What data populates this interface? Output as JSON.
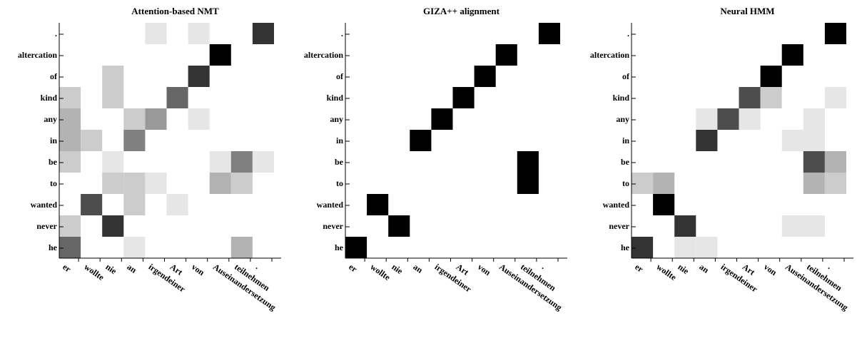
{
  "chart_data": [
    {
      "type": "heatmap",
      "title": "Attention-based NMT",
      "x_tokens": [
        "er",
        "wollte",
        "nie",
        "an",
        "irgendeiner",
        "Art",
        "von",
        "Auseinandersetzung",
        "teilnehmen",
        "."
      ],
      "y_tokens": [
        ".",
        "altercation",
        "of",
        "kind",
        "any",
        "in",
        "be",
        "to",
        "wanted",
        "never",
        "he"
      ],
      "values": [
        [
          0,
          0,
          0,
          0,
          0.1,
          0,
          0.1,
          0,
          0,
          0.8
        ],
        [
          0,
          0,
          0,
          0,
          0,
          0,
          0,
          1.0,
          0,
          0
        ],
        [
          0,
          0,
          0.2,
          0,
          0,
          0,
          0.8,
          0,
          0,
          0
        ],
        [
          0.2,
          0,
          0.2,
          0,
          0,
          0.6,
          0,
          0,
          0,
          0
        ],
        [
          0.3,
          0,
          0,
          0.2,
          0.4,
          0,
          0.1,
          0,
          0,
          0
        ],
        [
          0.3,
          0.2,
          0,
          0.5,
          0,
          0,
          0,
          0,
          0,
          0
        ],
        [
          0.2,
          0,
          0.1,
          0,
          0,
          0,
          0,
          0.1,
          0.5,
          0.1
        ],
        [
          0,
          0,
          0.2,
          0.2,
          0.1,
          0,
          0,
          0.3,
          0.2,
          0
        ],
        [
          0,
          0.7,
          0,
          0.2,
          0,
          0.1,
          0,
          0,
          0,
          0
        ],
        [
          0.2,
          0,
          0.8,
          0,
          0,
          0,
          0,
          0,
          0,
          0
        ],
        [
          0.6,
          0,
          0,
          0.1,
          0,
          0,
          0,
          0,
          0.3,
          0
        ]
      ]
    },
    {
      "type": "heatmap",
      "title": "GIZA++ alignment",
      "x_tokens": [
        "er",
        "wollte",
        "nie",
        "an",
        "irgendeiner",
        "Art",
        "von",
        "Auseinandersetzung",
        "teilnehmen",
        "."
      ],
      "y_tokens": [
        ".",
        "altercation",
        "of",
        "kind",
        "any",
        "in",
        "be",
        "to",
        "wanted",
        "never",
        "he"
      ],
      "values": [
        [
          0,
          0,
          0,
          0,
          0,
          0,
          0,
          0,
          0,
          1
        ],
        [
          0,
          0,
          0,
          0,
          0,
          0,
          0,
          1,
          0,
          0
        ],
        [
          0,
          0,
          0,
          0,
          0,
          0,
          1,
          0,
          0,
          0
        ],
        [
          0,
          0,
          0,
          0,
          0,
          1,
          0,
          0,
          0,
          0
        ],
        [
          0,
          0,
          0,
          0,
          1,
          0,
          0,
          0,
          0,
          0
        ],
        [
          0,
          0,
          0,
          1,
          0,
          0,
          0,
          0,
          0,
          0
        ],
        [
          0,
          0,
          0,
          0,
          0,
          0,
          0,
          0,
          1,
          0
        ],
        [
          0,
          0,
          0,
          0,
          0,
          0,
          0,
          0,
          1,
          0
        ],
        [
          0,
          1,
          0,
          0,
          0,
          0,
          0,
          0,
          0,
          0
        ],
        [
          0,
          0,
          1,
          0,
          0,
          0,
          0,
          0,
          0,
          0
        ],
        [
          1,
          0,
          0,
          0,
          0,
          0,
          0,
          0,
          0,
          0
        ]
      ]
    },
    {
      "type": "heatmap",
      "title": "Neural HMM",
      "x_tokens": [
        "er",
        "wollte",
        "nie",
        "an",
        "irgendeiner",
        "Art",
        "von",
        "Auseinandersetzung",
        "teilnehmen",
        "."
      ],
      "y_tokens": [
        ".",
        "altercation",
        "of",
        "kind",
        "any",
        "in",
        "be",
        "to",
        "wanted",
        "never",
        "he"
      ],
      "values": [
        [
          0,
          0,
          0,
          0,
          0,
          0,
          0,
          0,
          0,
          1.0
        ],
        [
          0,
          0,
          0,
          0,
          0,
          0,
          0,
          1.0,
          0,
          0
        ],
        [
          0,
          0,
          0,
          0,
          0,
          0,
          1.0,
          0,
          0,
          0
        ],
        [
          0,
          0,
          0,
          0,
          0,
          0.7,
          0.2,
          0,
          0,
          0.1
        ],
        [
          0,
          0,
          0,
          0.1,
          0.7,
          0.1,
          0,
          0,
          0.1,
          0
        ],
        [
          0,
          0,
          0,
          0.8,
          0,
          0,
          0,
          0.1,
          0.1,
          0
        ],
        [
          0,
          0,
          0,
          0,
          0,
          0,
          0,
          0,
          0.7,
          0.3
        ],
        [
          0.2,
          0.3,
          0,
          0,
          0,
          0,
          0,
          0,
          0.3,
          0.2
        ],
        [
          0,
          1.0,
          0,
          0,
          0,
          0,
          0,
          0,
          0,
          0
        ],
        [
          0,
          0,
          0.8,
          0,
          0,
          0,
          0,
          0.1,
          0.1,
          0
        ],
        [
          0.8,
          0,
          0.1,
          0.1,
          0,
          0,
          0,
          0,
          0,
          0
        ]
      ]
    }
  ]
}
